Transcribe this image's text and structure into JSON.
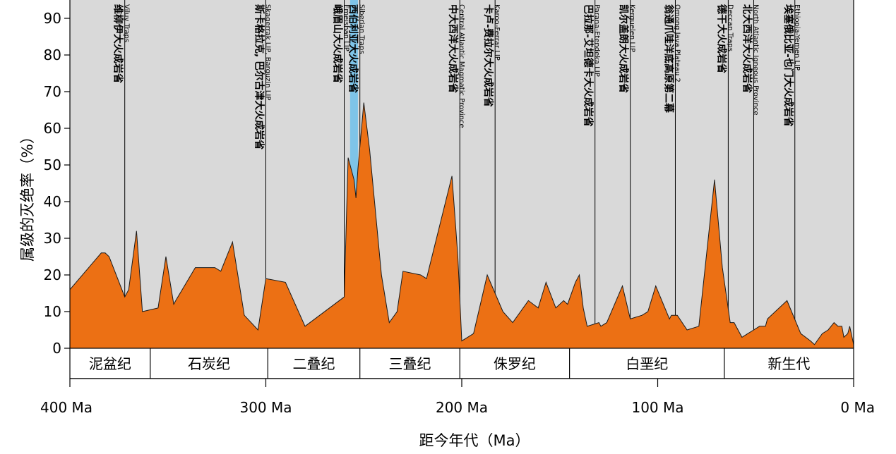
{
  "chart_data": {
    "type": "area",
    "xlabel": "距今年代（Ma）",
    "ylabel": "属级的灭绝率（%）",
    "xlim": [
      400,
      0
    ],
    "ylim": [
      0,
      95
    ],
    "x_ticks": [
      {
        "value": 400,
        "label": "400 Ma"
      },
      {
        "value": 300,
        "label": "300 Ma"
      },
      {
        "value": 200,
        "label": "200 Ma"
      },
      {
        "value": 100,
        "label": "100 Ma"
      },
      {
        "value": 0,
        "label": "0 Ma"
      }
    ],
    "y_ticks": [
      0,
      10,
      20,
      30,
      40,
      50,
      60,
      70,
      80,
      90
    ],
    "colors": {
      "area": "#ec7014",
      "background": "#d9d9d9",
      "highlight": "#7ec4e8",
      "lines": "#000000"
    },
    "highlight_range": [
      257,
      253
    ],
    "series": [
      {
        "x": [
          400,
          384,
          382,
          380,
          372,
          370,
          366,
          363,
          355,
          351,
          347,
          346,
          336,
          326,
          323,
          317,
          311,
          304,
          300,
          290,
          280,
          260,
          258,
          255,
          254,
          253,
          250,
          247,
          241,
          237,
          233,
          230,
          221,
          218,
          205,
          202,
          200,
          197,
          194,
          187,
          179,
          174,
          166,
          161,
          157,
          152,
          148,
          146,
          142,
          140,
          138,
          136,
          130,
          129,
          126,
          118,
          114,
          108,
          105,
          101,
          94,
          93,
          90,
          85,
          79,
          71,
          67,
          63,
          61,
          57,
          54,
          51,
          48,
          45,
          44,
          34,
          27,
          22,
          20,
          16,
          13,
          10,
          8,
          6,
          5,
          3,
          2,
          0
        ],
        "y": [
          16,
          26,
          26,
          25,
          14,
          16,
          32,
          10,
          11,
          25,
          12,
          13,
          22,
          22,
          21,
          29,
          9,
          5,
          19,
          18,
          6,
          14,
          52,
          46,
          41,
          49,
          67,
          54,
          20,
          7,
          10,
          21,
          20,
          19,
          47,
          25,
          2,
          3,
          4,
          20,
          10,
          7,
          13,
          11,
          18,
          11,
          13,
          12,
          18,
          20,
          11,
          6,
          7,
          6,
          7,
          17,
          8,
          9,
          10,
          17,
          8,
          9,
          9,
          5,
          6,
          46,
          22,
          7,
          7,
          3,
          4,
          5,
          6,
          6,
          8,
          13,
          4,
          2,
          1,
          4,
          5,
          7,
          6,
          6,
          3,
          4,
          6,
          1
        ]
      }
    ],
    "events": [
      {
        "x": 372,
        "zh": "维柳伊大火成岩省",
        "en": "Viluy Traps"
      },
      {
        "x": 300,
        "zh": "斯卡格拉克, 巴尔古津大火成岩省",
        "en": "Skagerrak LIP, Barguzin LIP"
      },
      {
        "x": 260,
        "zh": "峨眉山大火成岩省",
        "en": "Emeishan LIP"
      },
      {
        "x": 252,
        "zh": "西伯利亚大火成岩省",
        "en": "Siberian Traps"
      },
      {
        "x": 201,
        "zh": "中大西洋大火成岩省",
        "en": "Central Atlantic Magmatic Province"
      },
      {
        "x": 183,
        "zh": "卡卢-费拉尔大火成岩省",
        "en": "Karoo-Ferrar LIP"
      },
      {
        "x": 132,
        "zh": "巴拉那-艾坦德卡大火成岩省",
        "en": "Parana-Etendeka LIP"
      },
      {
        "x": 114,
        "zh": "凯尔盖朗大火成岩省",
        "en": "Kerguelen LIP"
      },
      {
        "x": 91,
        "zh": "翁通爪哇洋底高原第二幕",
        "en": "Omong Java Plateau 2"
      },
      {
        "x": 64,
        "zh": "德干大火成岩省",
        "en": "Deccan Traps"
      },
      {
        "x": 51,
        "zh": "北大西洋大火成岩省",
        "en": "North Atlantic Igneous Province"
      },
      {
        "x": 30,
        "zh": "埃塞俄比亚-也门大火成岩省",
        "en": "Ethiopia-Yemen LIP"
      }
    ],
    "periods": [
      {
        "name": "泥盆纪",
        "start": 400,
        "end": 359
      },
      {
        "name": "石炭纪",
        "start": 359,
        "end": 299
      },
      {
        "name": "二叠纪",
        "start": 299,
        "end": 252
      },
      {
        "name": "三叠纪",
        "start": 252,
        "end": 201
      },
      {
        "name": "侏罗纪",
        "start": 201,
        "end": 145
      },
      {
        "name": "白垩纪",
        "start": 145,
        "end": 66
      },
      {
        "name": "新生代",
        "start": 66,
        "end": 0
      }
    ]
  }
}
